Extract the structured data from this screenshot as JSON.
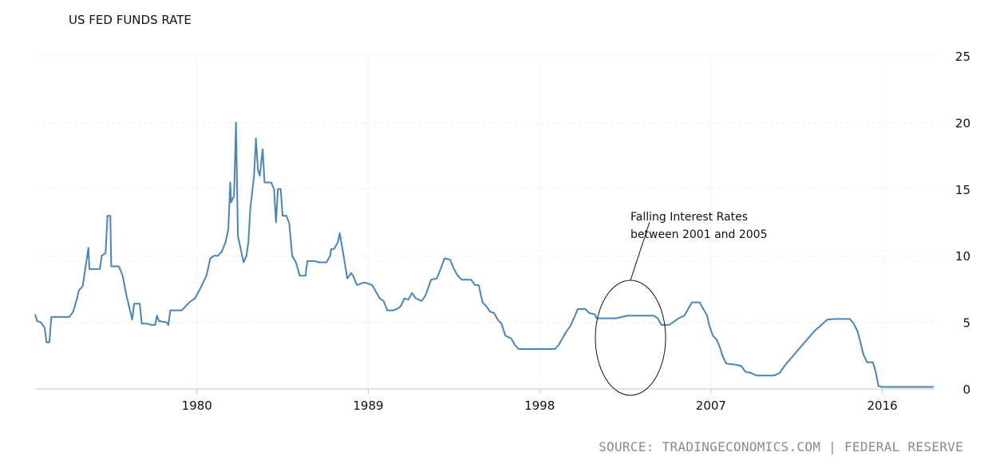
{
  "chart_data": {
    "type": "line",
    "title": "US FED FUNDS RATE",
    "xlabel": "",
    "ylabel": "",
    "xlim": [
      1971.5,
      2018.7
    ],
    "ylim": [
      0,
      25
    ],
    "x_ticks": [
      "1980",
      "1989",
      "1998",
      "2007",
      "2016"
    ],
    "y_ticks": [
      0,
      5,
      10,
      15,
      20,
      25
    ],
    "grid": true,
    "series": [
      {
        "color": "#4a85b8",
        "points": [
          [
            1971.5,
            5.6
          ],
          [
            1971.6,
            5.1
          ],
          [
            1971.8,
            5.0
          ],
          [
            1972.0,
            4.6
          ],
          [
            1972.1,
            3.5
          ],
          [
            1972.25,
            3.5
          ],
          [
            1972.35,
            5.4
          ],
          [
            1972.5,
            5.4
          ],
          [
            1973.0,
            5.4
          ],
          [
            1973.3,
            5.4
          ],
          [
            1973.5,
            5.8
          ],
          [
            1973.7,
            6.8
          ],
          [
            1973.8,
            7.4
          ],
          [
            1974.0,
            7.7
          ],
          [
            1974.3,
            10.6
          ],
          [
            1974.35,
            9.0
          ],
          [
            1974.9,
            9.0
          ],
          [
            1975.0,
            10.0
          ],
          [
            1975.2,
            10.2
          ],
          [
            1975.3,
            13.0
          ],
          [
            1975.45,
            13.0
          ],
          [
            1975.5,
            9.2
          ],
          [
            1975.9,
            9.2
          ],
          [
            1976.1,
            8.5
          ],
          [
            1976.3,
            7.0
          ],
          [
            1976.6,
            5.2
          ],
          [
            1976.7,
            6.4
          ],
          [
            1977.0,
            6.4
          ],
          [
            1977.1,
            4.9
          ],
          [
            1977.4,
            4.9
          ],
          [
            1977.6,
            4.8
          ],
          [
            1977.8,
            4.8
          ],
          [
            1977.9,
            5.5
          ],
          [
            1978.0,
            5.1
          ],
          [
            1978.4,
            5.0
          ],
          [
            1978.5,
            4.8
          ],
          [
            1978.6,
            5.9
          ],
          [
            1979.2,
            5.9
          ],
          [
            1979.4,
            6.2
          ],
          [
            1979.6,
            6.5
          ],
          [
            1979.9,
            6.8
          ],
          [
            1980.2,
            7.6
          ],
          [
            1980.5,
            8.5
          ],
          [
            1980.7,
            9.8
          ],
          [
            1980.9,
            10.0
          ],
          [
            1981.1,
            10.0
          ],
          [
            1981.3,
            10.3
          ],
          [
            1981.5,
            11.0
          ],
          [
            1981.65,
            12.0
          ],
          [
            1981.75,
            15.5
          ],
          [
            1981.8,
            14.0
          ],
          [
            1981.95,
            14.5
          ],
          [
            1982.05,
            20.0
          ],
          [
            1982.15,
            11.5
          ],
          [
            1982.3,
            10.5
          ],
          [
            1982.45,
            9.5
          ],
          [
            1982.6,
            10.0
          ],
          [
            1982.7,
            11.0
          ],
          [
            1982.8,
            13.5
          ],
          [
            1983.0,
            16.0
          ],
          [
            1983.1,
            18.8
          ],
          [
            1983.2,
            16.5
          ],
          [
            1983.3,
            16.0
          ],
          [
            1983.45,
            18.0
          ],
          [
            1983.55,
            15.5
          ],
          [
            1983.9,
            15.5
          ],
          [
            1984.05,
            15.0
          ],
          [
            1984.15,
            12.5
          ],
          [
            1984.25,
            15.0
          ],
          [
            1984.4,
            15.0
          ],
          [
            1984.5,
            13.0
          ],
          [
            1984.7,
            13.0
          ],
          [
            1984.85,
            12.4
          ],
          [
            1985.0,
            10.0
          ],
          [
            1985.2,
            9.5
          ],
          [
            1985.4,
            8.5
          ],
          [
            1985.7,
            8.5
          ],
          [
            1985.8,
            9.6
          ],
          [
            1986.2,
            9.6
          ],
          [
            1986.4,
            9.5
          ],
          [
            1986.8,
            9.5
          ],
          [
            1987.0,
            10.0
          ],
          [
            1987.05,
            10.5
          ],
          [
            1987.2,
            10.5
          ],
          [
            1987.4,
            11.0
          ],
          [
            1987.5,
            11.7
          ],
          [
            1987.7,
            10.0
          ],
          [
            1987.9,
            8.3
          ],
          [
            1988.1,
            8.7
          ],
          [
            1988.2,
            8.5
          ],
          [
            1988.4,
            7.8
          ],
          [
            1988.8,
            8.0
          ],
          [
            1989.2,
            7.8
          ],
          [
            1989.4,
            7.3
          ],
          [
            1989.6,
            6.8
          ],
          [
            1989.8,
            6.6
          ],
          [
            1990.0,
            5.9
          ],
          [
            1990.3,
            5.9
          ],
          [
            1990.5,
            6.0
          ],
          [
            1990.7,
            6.2
          ],
          [
            1990.9,
            6.8
          ],
          [
            1991.1,
            6.7
          ],
          [
            1991.3,
            7.2
          ],
          [
            1991.5,
            6.8
          ],
          [
            1991.8,
            6.6
          ],
          [
            1992.0,
            7.0
          ],
          [
            1992.3,
            8.2
          ],
          [
            1992.6,
            8.3
          ],
          [
            1992.8,
            9.0
          ],
          [
            1993.0,
            9.8
          ],
          [
            1993.3,
            9.7
          ],
          [
            1993.5,
            9.0
          ],
          [
            1993.7,
            8.5
          ],
          [
            1993.9,
            8.2
          ],
          [
            1994.4,
            8.2
          ],
          [
            1994.6,
            7.8
          ],
          [
            1994.8,
            7.8
          ],
          [
            1995.0,
            6.5
          ],
          [
            1995.2,
            6.2
          ],
          [
            1995.4,
            5.8
          ],
          [
            1995.6,
            5.7
          ],
          [
            1995.8,
            5.2
          ],
          [
            1996.0,
            4.9
          ],
          [
            1996.2,
            4.0
          ],
          [
            1996.5,
            3.8
          ],
          [
            1996.7,
            3.3
          ],
          [
            1996.9,
            3.0
          ],
          [
            1997.3,
            3.0
          ],
          [
            1998.0,
            3.0
          ],
          [
            1998.5,
            3.0
          ],
          [
            1998.8,
            3.0
          ],
          [
            1999.0,
            3.3
          ],
          [
            1999.2,
            3.8
          ],
          [
            1999.4,
            4.3
          ],
          [
            1999.6,
            4.7
          ],
          [
            1999.8,
            5.3
          ],
          [
            2000.0,
            6.0
          ],
          [
            2000.4,
            6.0
          ],
          [
            2000.6,
            5.7
          ],
          [
            2000.9,
            5.6
          ],
          [
            2001.0,
            5.3
          ],
          [
            2001.5,
            5.3
          ],
          [
            2002.0,
            5.3
          ],
          [
            2002.3,
            5.4
          ],
          [
            2002.6,
            5.5
          ],
          [
            2003.0,
            5.5
          ],
          [
            2003.5,
            5.5
          ],
          [
            2004.0,
            5.5
          ],
          [
            2004.2,
            5.3
          ],
          [
            2004.4,
            4.8
          ],
          [
            2004.8,
            4.8
          ],
          [
            2005.0,
            5.0
          ],
          [
            2005.3,
            5.3
          ],
          [
            2005.6,
            5.5
          ],
          [
            2005.8,
            6.0
          ],
          [
            2006.0,
            6.5
          ],
          [
            2006.4,
            6.5
          ],
          [
            2006.6,
            6.0
          ],
          [
            2006.8,
            5.5
          ],
          [
            2006.9,
            4.8
          ],
          [
            2007.1,
            4.0
          ],
          [
            2007.3,
            3.7
          ],
          [
            2007.5,
            3.0
          ],
          [
            2007.6,
            2.5
          ],
          [
            2007.8,
            1.9
          ],
          [
            2008.4,
            1.8
          ],
          [
            2008.6,
            1.7
          ],
          [
            2008.8,
            1.3
          ],
          [
            2009.1,
            1.2
          ],
          [
            2009.4,
            1.0
          ],
          [
            2010.0,
            1.0
          ],
          [
            2010.3,
            1.0
          ],
          [
            2010.6,
            1.2
          ],
          [
            2010.9,
            1.8
          ],
          [
            2011.2,
            2.3
          ],
          [
            2011.5,
            2.8
          ],
          [
            2011.8,
            3.3
          ],
          [
            2012.1,
            3.8
          ],
          [
            2012.4,
            4.3
          ],
          [
            2012.8,
            4.8
          ],
          [
            2013.1,
            5.2
          ],
          [
            2013.5,
            5.25
          ],
          [
            2014.0,
            5.25
          ],
          [
            2014.3,
            5.25
          ],
          [
            2014.5,
            4.9
          ],
          [
            2014.7,
            4.3
          ],
          [
            2014.85,
            3.5
          ],
          [
            2015.0,
            2.6
          ],
          [
            2015.2,
            2.0
          ],
          [
            2015.5,
            2.0
          ],
          [
            2015.65,
            1.3
          ],
          [
            2015.8,
            0.2
          ],
          [
            2016.0,
            0.15
          ],
          [
            2018.7,
            0.15
          ]
        ]
      }
    ],
    "annotations": [
      {
        "lines": [
          "Falling Interest Rates",
          "between 2001 and 2005"
        ]
      }
    ]
  },
  "source_text": "SOURCE: TRADINGECONOMICS.COM | FEDERAL RESERVE"
}
